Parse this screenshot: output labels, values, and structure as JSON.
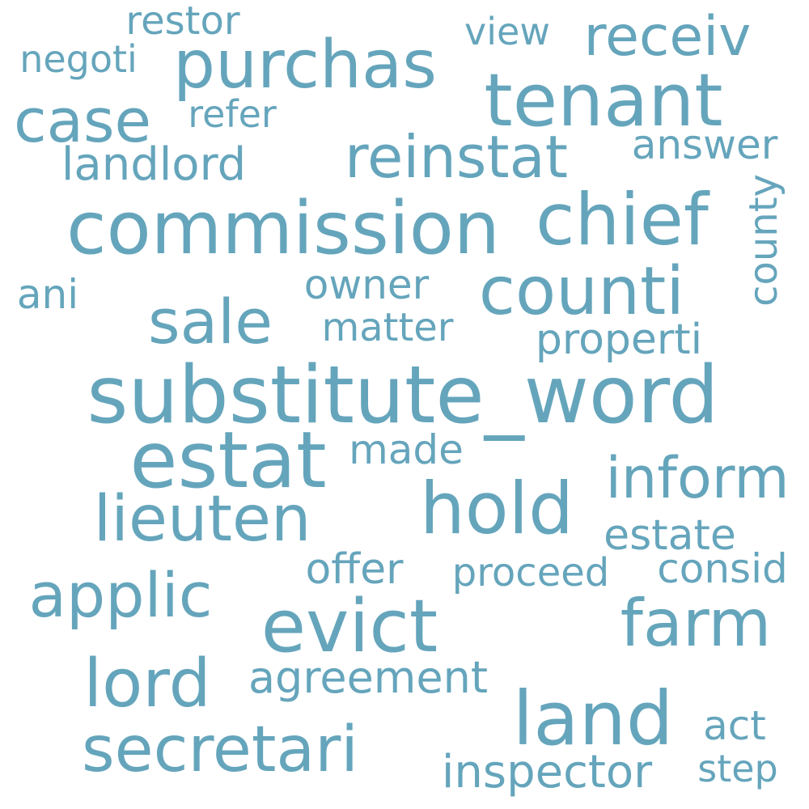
{
  "style": {
    "background": "#ffffff",
    "word_color": "#65a5bc"
  },
  "words": [
    "substitute_word",
    "estat",
    "commission",
    "tenant",
    "purchas",
    "chief",
    "counti",
    "evict",
    "land",
    "hold",
    "secretari",
    "lord",
    "applic",
    "farm",
    "lieuten",
    "sale",
    "case",
    "reinstat",
    "receiv",
    "inform",
    "agreement",
    "inspector",
    "landlord",
    "properti",
    "estate",
    "offer",
    "proceed",
    "consid",
    "restor",
    "negoti",
    "view",
    "refer",
    "answer",
    "county",
    "owner",
    "matter",
    "ani",
    "made",
    "act",
    "step"
  ]
}
